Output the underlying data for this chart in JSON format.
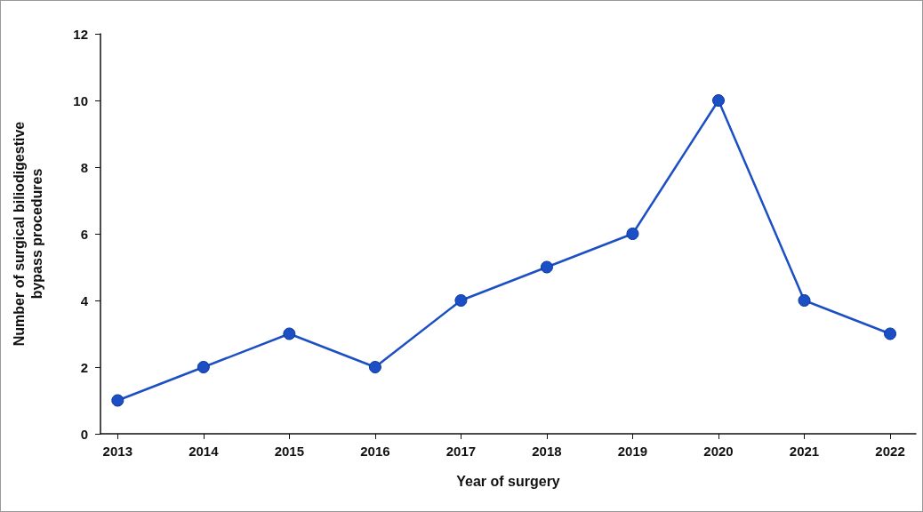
{
  "chart_data": {
    "type": "line",
    "xlabel": "Year of surgery",
    "ylabel": "Number of surgical biliodigestive\nbypass procedures",
    "x": [
      2013,
      2014,
      2015,
      2016,
      2017,
      2018,
      2019,
      2020,
      2021,
      2022
    ],
    "values": [
      1,
      2,
      3,
      2,
      4,
      5,
      6,
      10,
      4,
      3
    ],
    "color": "#1c4fc4",
    "xlim": [
      2012.8,
      2022.3
    ],
    "xticks": [
      2013,
      2014,
      2015,
      2016,
      2017,
      2018,
      2019,
      2020,
      2021,
      2022
    ],
    "ylim": [
      0,
      12
    ],
    "yticks": [
      0,
      2,
      4,
      6,
      8,
      10,
      12
    ],
    "grid": false,
    "marker": "circle",
    "line_style": "solid"
  }
}
